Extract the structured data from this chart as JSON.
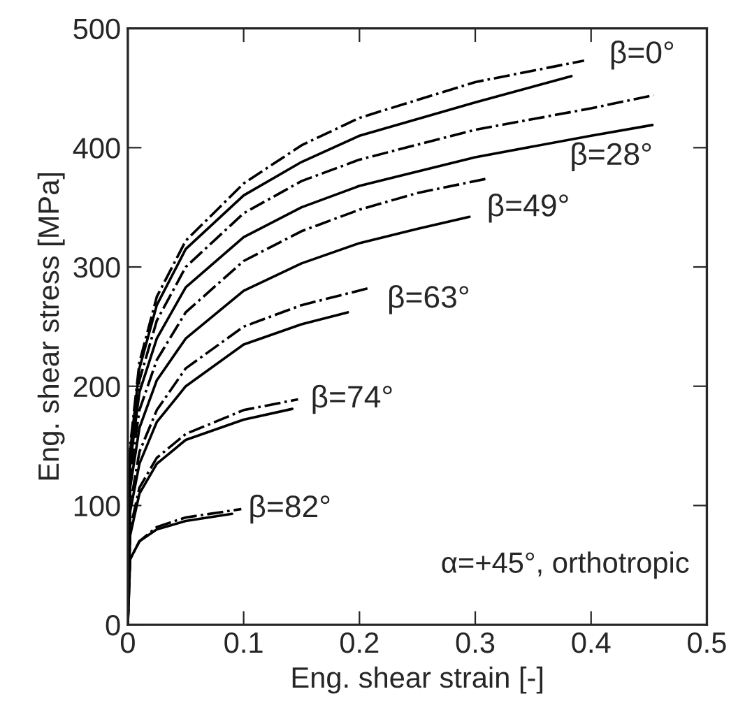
{
  "chart_data": {
    "type": "line",
    "xlabel": "Eng. shear strain [-]",
    "ylabel": "Eng. shear stress [MPa]",
    "xlim": [
      0,
      0.5
    ],
    "xticks": [
      0,
      0.1,
      0.2,
      0.3,
      0.4,
      0.5
    ],
    "ylim": [
      0,
      500
    ],
    "yticks": [
      0,
      100,
      200,
      300,
      400,
      500
    ],
    "grid": false,
    "legend": false,
    "marker": "none",
    "series": [
      {
        "color": "#000000",
        "line_style": "dashdot",
        "x": [
          0,
          0.002,
          0.01,
          0.025,
          0.05,
          0.1,
          0.15,
          0.2,
          0.3,
          0.394
        ],
        "values": [
          0,
          150,
          220,
          275,
          322,
          370,
          402,
          425,
          455,
          473
        ]
      },
      {
        "color": "#000000",
        "line_style": "solid",
        "x": [
          0,
          0.002,
          0.01,
          0.025,
          0.05,
          0.1,
          0.15,
          0.2,
          0.3,
          0.383
        ],
        "values": [
          0,
          145,
          215,
          268,
          315,
          360,
          388,
          410,
          438,
          460
        ]
      },
      {
        "color": "#000000",
        "line_style": "dashdot",
        "x": [
          0,
          0.002,
          0.01,
          0.025,
          0.05,
          0.1,
          0.15,
          0.2,
          0.3,
          0.4,
          0.454
        ],
        "values": [
          0,
          140,
          205,
          255,
          300,
          345,
          372,
          390,
          415,
          433,
          444
        ]
      },
      {
        "color": "#000000",
        "line_style": "solid",
        "x": [
          0,
          0.002,
          0.01,
          0.025,
          0.05,
          0.1,
          0.15,
          0.2,
          0.3,
          0.4,
          0.453
        ],
        "values": [
          0,
          135,
          195,
          240,
          283,
          325,
          350,
          368,
          392,
          410,
          419
        ]
      },
      {
        "color": "#000000",
        "line_style": "dashdot",
        "x": [
          0,
          0.002,
          0.01,
          0.025,
          0.05,
          0.1,
          0.15,
          0.2,
          0.25,
          0.31
        ],
        "values": [
          0,
          125,
          180,
          222,
          262,
          305,
          330,
          348,
          362,
          374
        ]
      },
      {
        "color": "#000000",
        "line_style": "solid",
        "x": [
          0,
          0.002,
          0.01,
          0.025,
          0.05,
          0.1,
          0.15,
          0.2,
          0.25,
          0.295
        ],
        "values": [
          0,
          115,
          165,
          205,
          240,
          280,
          303,
          320,
          332,
          342
        ]
      },
      {
        "color": "#000000",
        "line_style": "dashdot",
        "x": [
          0,
          0.002,
          0.01,
          0.025,
          0.05,
          0.1,
          0.15,
          0.207
        ],
        "values": [
          0,
          100,
          145,
          180,
          215,
          250,
          268,
          282
        ]
      },
      {
        "color": "#000000",
        "line_style": "solid",
        "x": [
          0,
          0.002,
          0.01,
          0.025,
          0.05,
          0.1,
          0.15,
          0.19
        ],
        "values": [
          0,
          95,
          135,
          170,
          200,
          235,
          252,
          262
        ]
      },
      {
        "color": "#000000",
        "line_style": "dashdot",
        "x": [
          0,
          0.002,
          0.01,
          0.025,
          0.05,
          0.1,
          0.147
        ],
        "values": [
          0,
          80,
          115,
          140,
          160,
          180,
          189
        ]
      },
      {
        "color": "#000000",
        "line_style": "solid",
        "x": [
          0,
          0.002,
          0.01,
          0.025,
          0.05,
          0.1,
          0.142
        ],
        "values": [
          0,
          75,
          110,
          135,
          155,
          172,
          181
        ]
      },
      {
        "color": "#000000",
        "line_style": "dashdot",
        "x": [
          0,
          0.002,
          0.01,
          0.025,
          0.05,
          0.098
        ],
        "values": [
          0,
          55,
          70,
          82,
          90,
          97
        ]
      },
      {
        "color": "#000000",
        "line_style": "solid",
        "x": [
          0,
          0.002,
          0.01,
          0.025,
          0.05,
          0.09
        ],
        "values": [
          0,
          55,
          70,
          80,
          87,
          93
        ]
      }
    ],
    "annotations": [
      "β=0°",
      "β=28°",
      "β=49°",
      "β=63°",
      "β=74°",
      "β=82°",
      "α=+45°, orthotropic"
    ]
  }
}
